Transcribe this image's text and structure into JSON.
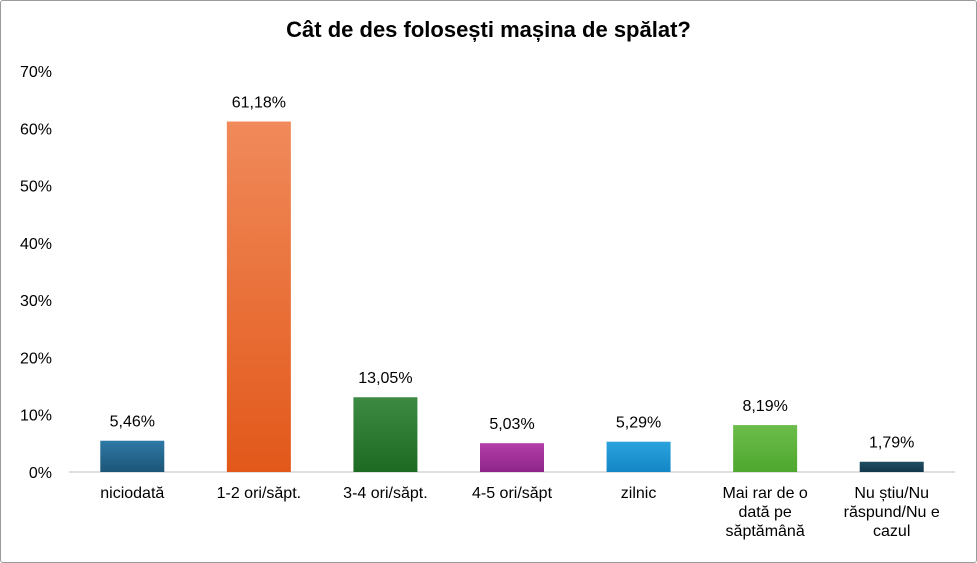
{
  "chart_data": {
    "type": "bar",
    "title": "Cât de des folosești mașina de spălat?",
    "xlabel": "",
    "ylabel": "",
    "ylim": [
      0,
      70
    ],
    "yticks": [
      "0%",
      "10%",
      "20%",
      "30%",
      "40%",
      "50%",
      "60%",
      "70%"
    ],
    "grid": false,
    "legend": "none",
    "categories": [
      "niciodată",
      "1-2 ori/săpt.",
      "3-4 ori/săpt.",
      "4-5 ori/săpt",
      "zilnic",
      "Mai rar de o dată pe săptămână",
      "Nu știu/Nu răspund/Nu e cazul"
    ],
    "category_lines": [
      [
        "niciodată"
      ],
      [
        "1-2 ori/săpt."
      ],
      [
        "3-4 ori/săpt."
      ],
      [
        "4-5 ori/săpt"
      ],
      [
        "zilnic"
      ],
      [
        "Mai rar de o",
        "dată pe",
        "săptămână"
      ],
      [
        "Nu știu/Nu",
        "răspund/Nu e",
        "cazul"
      ]
    ],
    "values": [
      5.46,
      61.18,
      13.05,
      5.03,
      5.29,
      8.19,
      1.79
    ],
    "data_labels": [
      "5,46%",
      "61,18%",
      "13,05%",
      "5,03%",
      "5,29%",
      "8,19%",
      "1,79%"
    ],
    "colors": [
      [
        "#2e79a5",
        "#1c5578"
      ],
      [
        "#f08a5a",
        "#e2581a"
      ],
      [
        "#3d8a43",
        "#1d6b22"
      ],
      [
        "#b43fa8",
        "#8d2489"
      ],
      [
        "#2aa3de",
        "#1487c6"
      ],
      [
        "#6cbd4b",
        "#4ea72e"
      ],
      [
        "#1f4d63",
        "#12384b"
      ]
    ]
  }
}
